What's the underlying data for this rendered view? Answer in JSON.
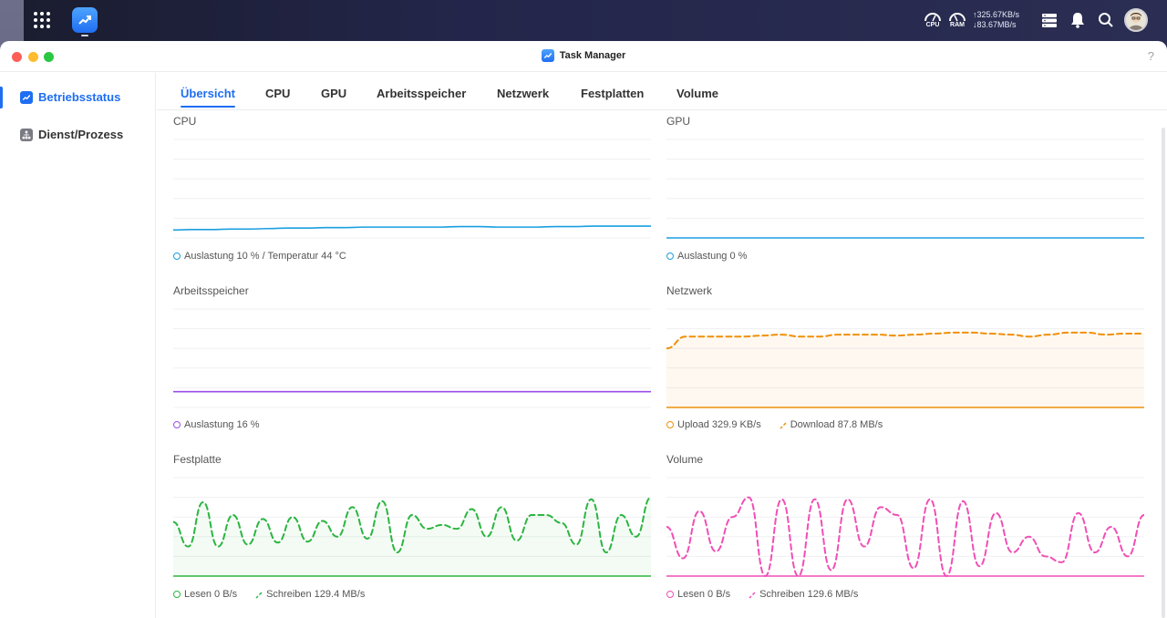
{
  "topbar": {
    "cpu_label": "CPU",
    "ram_label": "RAM",
    "upload_speed": "↑325.67KB/s",
    "download_speed": "↓83.67MB/s"
  },
  "window": {
    "title": "Task Manager",
    "help": "?"
  },
  "sidebar": {
    "items": [
      {
        "label": "Betriebsstatus",
        "active": true
      },
      {
        "label": "Dienst/Prozess",
        "active": false
      }
    ]
  },
  "tabs": [
    "Übersicht",
    "CPU",
    "GPU",
    "Arbeitsspeicher",
    "Netzwerk",
    "Festplatten",
    "Volume"
  ],
  "panels": {
    "cpu": {
      "title": "CPU",
      "legend": "Auslastung 10 % / Temperatur 44 °C",
      "color": "#1a9fe0"
    },
    "gpu": {
      "title": "GPU",
      "legend": "Auslastung 0 %",
      "color": "#1a9fe0"
    },
    "memory": {
      "title": "Arbeitsspeicher",
      "legend": "Auslastung 16 %",
      "color": "#9b4fe8"
    },
    "network": {
      "title": "Netzwerk",
      "legend_upload": "Upload 329.9 KB/s",
      "legend_download": "Download 87.8 MB/s",
      "color": "#f0900a"
    },
    "disk": {
      "title": "Festplatte",
      "legend_read": "Lesen 0 B/s",
      "legend_write": "Schreiben 129.4 MB/s",
      "color": "#2bb540"
    },
    "volume": {
      "title": "Volume",
      "legend_read": "Lesen 0 B/s",
      "legend_write": "Schreiben 129.6 MB/s",
      "color": "#f04fb5"
    }
  },
  "chart_data": [
    {
      "type": "line",
      "series": [
        {
          "values": [
            8,
            8.5,
            8.5,
            9,
            9,
            9.5,
            10,
            10,
            10.5,
            10.5,
            11,
            11,
            11,
            11,
            11,
            11.5,
            11.5,
            11,
            11,
            11,
            11.5,
            11.5,
            12,
            12,
            12,
            12
          ]
        }
      ],
      "ylim": [
        0,
        100
      ]
    },
    {
      "type": "line",
      "series": [
        {
          "values": [
            0,
            0,
            0,
            0,
            0,
            0,
            0,
            0,
            0,
            0
          ]
        }
      ],
      "ylim": [
        0,
        100
      ]
    },
    {
      "type": "line",
      "series": [
        {
          "values": [
            16,
            16,
            16,
            16,
            16,
            16,
            16,
            16,
            16,
            16
          ]
        }
      ],
      "ylim": [
        0,
        100
      ]
    },
    {
      "type": "line",
      "series": [
        {
          "values": [
            0,
            0,
            0,
            0,
            0,
            0,
            0,
            0,
            0,
            0
          ]
        },
        {
          "values": [
            60,
            72,
            72,
            72,
            72,
            73,
            74,
            72,
            72,
            74,
            74,
            74,
            73,
            74,
            75,
            76,
            76,
            75,
            74,
            72,
            74,
            76,
            76,
            74,
            75,
            75
          ]
        }
      ],
      "ylim": [
        0,
        100
      ]
    },
    {
      "type": "line",
      "series": [
        {
          "values": [
            0,
            0,
            0,
            0,
            0,
            0,
            0,
            0,
            0,
            0
          ]
        },
        {
          "values": [
            55,
            30,
            75,
            30,
            62,
            32,
            58,
            34,
            60,
            35,
            56,
            40,
            70,
            38,
            76,
            24,
            62,
            48,
            52,
            48,
            68,
            40,
            70,
            36,
            62,
            62,
            54,
            32,
            78,
            24,
            62,
            40,
            80
          ]
        }
      ],
      "ylim": [
        0,
        100
      ]
    },
    {
      "type": "line",
      "series": [
        {
          "values": [
            0,
            0,
            0,
            0,
            0,
            0,
            0,
            0,
            0,
            0
          ]
        },
        {
          "values": [
            50,
            18,
            66,
            25,
            60,
            80,
            0,
            78,
            0,
            78,
            6,
            78,
            30,
            70,
            62,
            8,
            78,
            0,
            76,
            10,
            64,
            24,
            40,
            20,
            14,
            64,
            24,
            50,
            20,
            62
          ]
        }
      ],
      "ylim": [
        0,
        100
      ]
    }
  ]
}
